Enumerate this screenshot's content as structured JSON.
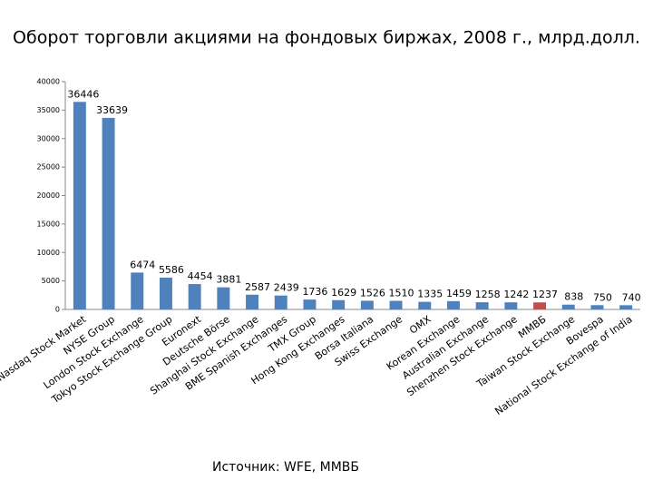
{
  "chart_data": {
    "type": "bar",
    "title": "Оборот торговли акциями на фондовых биржах, 2008 г., млрд.долл.",
    "source": "Источник: WFE, ММВБ",
    "categories": [
      "Nasdaq Stock Market",
      "NYSE Group",
      "London Stock Exchange",
      "Tokyo Stock Exchange Group",
      "Euronext",
      "Deutsche Börse",
      "Shanghai Stock Exchange",
      "BME Spanish Exchanges",
      "TMX Group",
      "Hong Kong Exchanges",
      "Borsa Italiana",
      "Swiss Exchange",
      "OMX",
      "Korean Exchange",
      "Australian Exchange",
      "Shenzhen Stock Exchange",
      "ММВБ",
      "Taiwan Stock Exchange",
      "Bovespa",
      "National Stock Exchange of India"
    ],
    "values": [
      36446,
      33639,
      6474,
      5586,
      4454,
      3881,
      2587,
      2439,
      1736,
      1629,
      1526,
      1510,
      1335,
      1459,
      1258,
      1242,
      1237,
      838,
      750,
      740
    ],
    "colors": [
      "#4f81bd",
      "#4f81bd",
      "#4f81bd",
      "#4f81bd",
      "#4f81bd",
      "#4f81bd",
      "#4f81bd",
      "#4f81bd",
      "#4f81bd",
      "#4f81bd",
      "#4f81bd",
      "#4f81bd",
      "#4f81bd",
      "#4f81bd",
      "#4f81bd",
      "#4f81bd",
      "#c0504d",
      "#4f81bd",
      "#4f81bd",
      "#4f81bd"
    ],
    "ylim": [
      0,
      40000
    ],
    "yticks": [
      0,
      5000,
      10000,
      15000,
      20000,
      25000,
      30000,
      35000,
      40000
    ],
    "grid": false
  }
}
